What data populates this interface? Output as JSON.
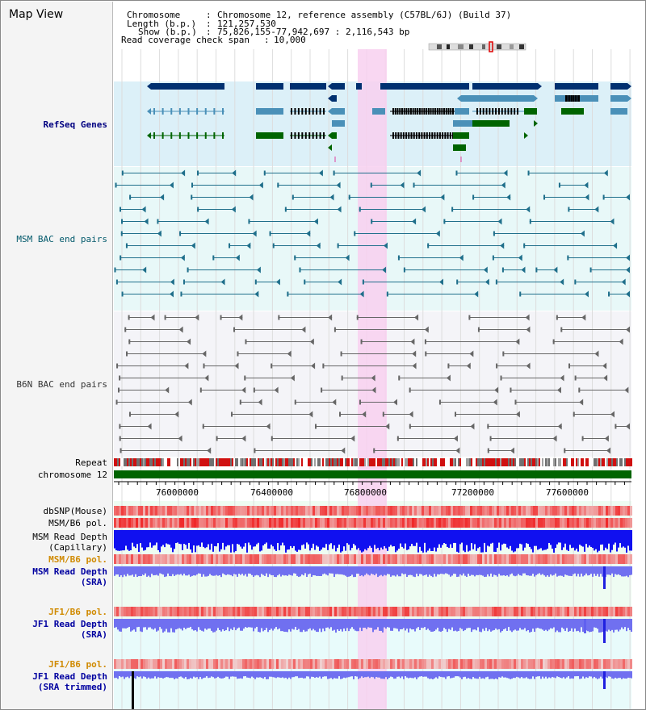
{
  "viewer_title": "Map View",
  "info": {
    "chromosome_key": "Chromosome",
    "chromosome_val": "Chromosome 12, reference assembly (C57BL/6J) (Build 37)",
    "length_key": "Length (b.p.)",
    "length_val": "121,257,530",
    "show_key": "Show (b.p.)",
    "show_val": "75,826,155-77,942,697 : 2,116,543 bp",
    "span_key": "Read coverage check span",
    "span_val": "10,000"
  },
  "tracks": {
    "refseq": "RefSeq Genes",
    "msm_bac": "MSM BAC end pairs",
    "b6n_bac": "B6N BAC end pairs",
    "repeat": "Repeat",
    "chromosome": "chromosome 12",
    "dbsnp": "dbSNP(Mouse)",
    "msm_pol1": "MSM/B6 pol.",
    "msm_depth_cap_1": "MSM Read Depth",
    "msm_depth_cap_2": "(Capillary)",
    "msm_pol2": "MSM/B6 pol.",
    "msm_depth_sra_1": "MSM Read Depth",
    "msm_depth_sra_2": "(SRA)",
    "jf1_pol1": "JF1/B6 pol.",
    "jf1_depth_sra_1": "JF1 Read Depth",
    "jf1_depth_sra_2": "(SRA)",
    "jf1_pol2": "JF1/B6 pol.",
    "jf1_depth_trim_1": "JF1 Read Depth",
    "jf1_depth_trim_2": "(SRA trimmed)"
  },
  "axis_ticks": [
    "76000000",
    "76400000",
    "76800000",
    "77200000",
    "77600000"
  ],
  "colors": {
    "refseq_bg": "#dcf0f8",
    "msm_bg": "#e8f8f8",
    "b6n_bg": "#f4f4f8",
    "highlight": "#f8d0f0",
    "chromosome_bar": "#006400",
    "gene_navy": "#003070",
    "gene_teal": "#4a90b8",
    "gene_green": "#006400",
    "depth_blue": "#1010f0",
    "depth_light": "#7070f0"
  }
}
